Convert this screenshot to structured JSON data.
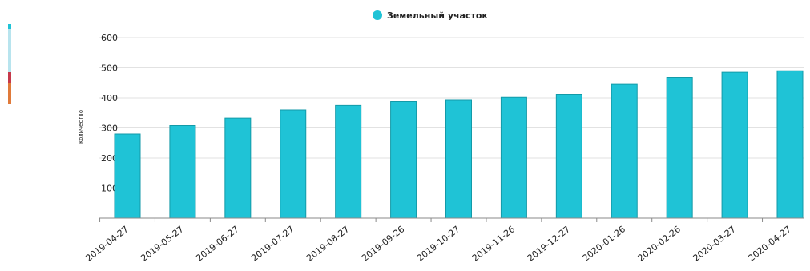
{
  "chart_data": {
    "type": "bar",
    "title": "",
    "xlabel": "",
    "ylabel": "количество",
    "categories": [
      "2019-04-27",
      "2019-05-27",
      "2019-06-27",
      "2019-07-27",
      "2019-08-27",
      "2019-09-26",
      "2019-10-27",
      "2019-11-26",
      "2019-12-27",
      "2020-01-26",
      "2020-02-26",
      "2020-03-27",
      "2020-04-27"
    ],
    "series": [
      {
        "name": "Земельный участок",
        "values": [
          280,
          308,
          333,
          360,
          375,
          388,
          392,
          402,
          412,
          445,
          468,
          485,
          490
        ]
      }
    ],
    "ylim": [
      0,
      600
    ],
    "yticks": [
      100,
      200,
      300,
      400,
      500,
      600
    ],
    "grid": true,
    "legend_position": "top-center"
  },
  "colors": {
    "bar": "#1fc3d6",
    "bar_edge": "#139aa8",
    "grid": "#e2e2e2",
    "axis": "#8a8a8a",
    "side_strip": [
      "#1fc3d6",
      "#b8e4ee",
      "#c6394a",
      "#e07a3a"
    ]
  }
}
